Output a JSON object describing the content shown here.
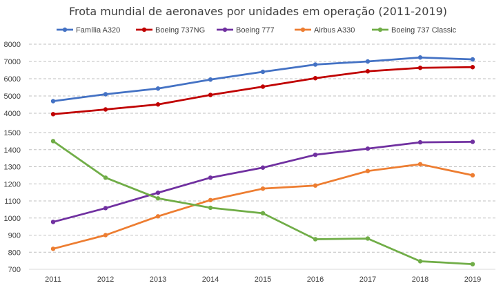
{
  "chart_data": {
    "type": "line",
    "title": "Frota mundial de aeronaves por unidades em operação (2011-2019)",
    "xlabel": "",
    "ylabel": "",
    "legend_position": "top",
    "grid": true,
    "axis_break": true,
    "categories": [
      "2011",
      "2012",
      "2013",
      "2014",
      "2015",
      "2016",
      "2017",
      "2018",
      "2019"
    ],
    "y_ticks_upper": [
      "8000",
      "7000",
      "6000",
      "5000",
      "4000"
    ],
    "y_ticks_lower": [
      "1500",
      "1400",
      "1300",
      "1200",
      "1100",
      "1000",
      "900",
      "800",
      "700"
    ],
    "upper_range": [
      4000,
      8000
    ],
    "lower_range": [
      700,
      1500
    ],
    "series": [
      {
        "name": "Família A320",
        "color": "#4472c4",
        "values": [
          4700,
          5100,
          5430,
          5950,
          6400,
          6820,
          7000,
          7230,
          7120
        ]
      },
      {
        "name": "Boeing 737NG",
        "color": "#c00000",
        "values": [
          3880,
          4220,
          4510,
          5060,
          5540,
          6030,
          6430,
          6630,
          6670
        ]
      },
      {
        "name": "Boeing 777",
        "color": "#7030a0",
        "values": [
          977,
          1058,
          1148,
          1236,
          1295,
          1370,
          1406,
          1443,
          1446
        ]
      },
      {
        "name": "Airbus A330",
        "color": "#ed7d31",
        "values": [
          820,
          900,
          1010,
          1105,
          1172,
          1190,
          1275,
          1315,
          1250
        ]
      },
      {
        "name": "Boeing 737 Classic",
        "color": "#70ad47",
        "values": [
          1450,
          1236,
          1115,
          1060,
          1028,
          876,
          880,
          747,
          730
        ]
      }
    ]
  }
}
